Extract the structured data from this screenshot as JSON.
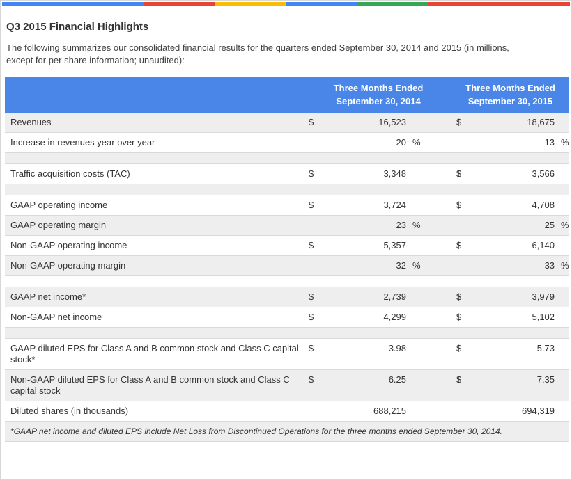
{
  "page": {
    "title": "Q3 2015 Financial Highlights",
    "intro": "The following summarizes our consolidated financial results for the quarters ended September 30, 2014 and 2015 (in millions, except for per share information; unaudited):"
  },
  "topbar": {
    "segments": [
      {
        "name": "bar-segment-blue-1",
        "color": "#4285f4",
        "flex": "2"
      },
      {
        "name": "bar-segment-red-1",
        "color": "#ea4335",
        "flex": "1"
      },
      {
        "name": "bar-segment-yellow",
        "color": "#fbbc05",
        "flex": "1"
      },
      {
        "name": "bar-segment-blue-2",
        "color": "#4285f4",
        "flex": "1"
      },
      {
        "name": "bar-segment-green",
        "color": "#34a853",
        "flex": "1"
      },
      {
        "name": "bar-segment-red-2",
        "color": "#ea4335",
        "flex": "2"
      }
    ]
  },
  "colors": {
    "header_bg": "#4a86e8",
    "header_text": "#ffffff",
    "row_shaded": "#eeeeee",
    "border": "#d9d9d9",
    "text": "#333333"
  },
  "table": {
    "header": {
      "col1_line1": "Three Months Ended",
      "col1_line2": "September 30, 2014",
      "col2_line1": "Three Months Ended",
      "col2_line2": "September 30, 2015"
    },
    "rows": [
      {
        "label": "Revenues",
        "d1": "$",
        "v1": "16,523",
        "p1": "",
        "d2": "$",
        "v2": "18,675",
        "p2": ""
      },
      {
        "label": "Increase in revenues year over year",
        "d1": "",
        "v1": "20",
        "p1": "%",
        "d2": "",
        "v2": "13",
        "p2": "%"
      },
      {
        "label": "",
        "d1": "",
        "v1": "",
        "p1": "",
        "d2": "",
        "v2": "",
        "p2": ""
      },
      {
        "label": "Traffic acquisition costs (TAC)",
        "d1": "$",
        "v1": "3,348",
        "p1": "",
        "d2": "$",
        "v2": "3,566",
        "p2": ""
      },
      {
        "label": "",
        "d1": "",
        "v1": "",
        "p1": "",
        "d2": "",
        "v2": "",
        "p2": ""
      },
      {
        "label": "GAAP operating income",
        "d1": "$",
        "v1": "3,724",
        "p1": "",
        "d2": "$",
        "v2": "4,708",
        "p2": ""
      },
      {
        "label": "GAAP operating margin",
        "d1": "",
        "v1": "23",
        "p1": "%",
        "d2": "",
        "v2": "25",
        "p2": "%"
      },
      {
        "label": "Non-GAAP operating income",
        "d1": "$",
        "v1": "5,357",
        "p1": "",
        "d2": "$",
        "v2": "6,140",
        "p2": ""
      },
      {
        "label": "Non-GAAP operating margin",
        "d1": "",
        "v1": "32",
        "p1": "%",
        "d2": "",
        "v2": "33",
        "p2": "%"
      },
      {
        "label": "",
        "d1": "",
        "v1": "",
        "p1": "",
        "d2": "",
        "v2": "",
        "p2": ""
      },
      {
        "label": "GAAP net income*",
        "d1": "$",
        "v1": "2,739",
        "p1": "",
        "d2": "$",
        "v2": "3,979",
        "p2": ""
      },
      {
        "label": "Non-GAAP net income",
        "d1": "$",
        "v1": "4,299",
        "p1": "",
        "d2": "$",
        "v2": "5,102",
        "p2": ""
      },
      {
        "label": "",
        "d1": "",
        "v1": "",
        "p1": "",
        "d2": "",
        "v2": "",
        "p2": ""
      },
      {
        "label": "GAAP diluted EPS for Class A and B common stock and Class C capital stock*",
        "d1": "$",
        "v1": "3.98",
        "p1": "",
        "d2": "$",
        "v2": "5.73",
        "p2": ""
      },
      {
        "label": "Non-GAAP diluted EPS for Class A and B common stock and Class C capital stock",
        "d1": "$",
        "v1": "6.25",
        "p1": "",
        "d2": "$",
        "v2": "7.35",
        "p2": ""
      },
      {
        "label": "Diluted shares (in thousands)",
        "d1": "",
        "v1": "688,215",
        "p1": "",
        "d2": "",
        "v2": "694,319",
        "p2": ""
      }
    ],
    "footnote": "*GAAP net income and diluted EPS include Net Loss from Discontinued Operations for the three months ended September 30, 2014."
  }
}
